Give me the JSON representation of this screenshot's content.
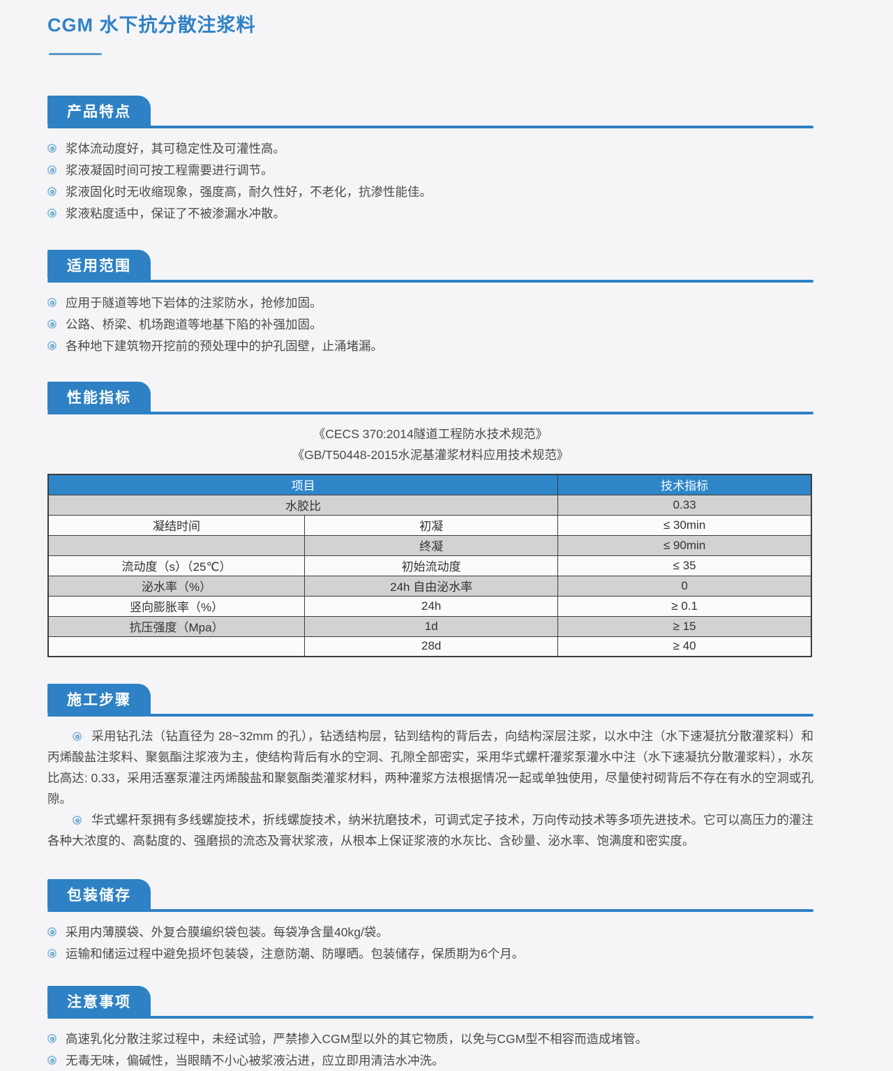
{
  "page": {
    "title": "CGM 水下抗分散注浆料"
  },
  "colors": {
    "accent": "#2e81c4",
    "table_header": "#2e86c9",
    "row_gray": "#d2d2d4",
    "title_blue": "#2f81c6"
  },
  "sections": {
    "features": {
      "heading": "产品特点",
      "bullets": [
        "浆体流动度好，其可稳定性及可灌性高。",
        "浆液凝固时间可按工程需要进行调节。",
        "浆液固化时无收缩现象，强度高，耐久性好，不老化，抗渗性能佳。",
        "浆液粘度适中，保证了不被渗漏水冲散。"
      ]
    },
    "scope": {
      "heading": "适用范围",
      "bullets": [
        "应用于隧道等地下岩体的注浆防水，抢修加固。",
        "公路、桥梁、机场跑道等地基下陷的补强加固。",
        "各种地下建筑物开挖前的预处理中的护孔固壁，止涌堵漏。"
      ]
    },
    "performance": {
      "heading": "性能指标",
      "standards": [
        "《CECS 370:2014隧道工程防水技术规范》",
        "《GB/T50448-2015水泥基灌浆材料应用技术规范》"
      ],
      "table": {
        "headers": [
          "项目",
          "技术指标"
        ],
        "rows": [
          {
            "item": "水胶比",
            "sub": "",
            "value": "0.33"
          },
          {
            "item": "凝结时间",
            "sub": "初凝",
            "value": "≤ 30min"
          },
          {
            "item": "",
            "sub": "终凝",
            "value": "≤ 90min"
          },
          {
            "item": "流动度（s）（25℃）",
            "sub": "初始流动度",
            "value": "≤ 35"
          },
          {
            "item": "泌水率（%）",
            "sub": "24h 自由泌水率",
            "value": "0"
          },
          {
            "item": "竖向膨胀率（%）",
            "sub": "24h",
            "value": "≥ 0.1"
          },
          {
            "item": "抗压强度（Mpa）",
            "sub": "1d",
            "value": "≥ 15"
          },
          {
            "item": "",
            "sub": "28d",
            "value": "≥ 40"
          }
        ]
      }
    },
    "construction": {
      "heading": "施工步骤",
      "paragraphs": [
        "采用钻孔法（钻直径为 28~32mm 的孔），钻透结构层，钻到结构的背后去，向结构深层注浆，以水中注（水下速凝抗分散灌浆料）和丙烯酸盐注浆料、聚氨酯注浆液为主，使结构背后有水的空洞、孔隙全部密实，采用华式螺杆灌浆泵灌水中注（水下速凝抗分散灌浆料），水灰比高达: 0.33，采用活塞泵灌注丙烯酸盐和聚氨酯类灌浆材料，两种灌浆方法根据情况一起或单独使用，尽量使衬砌背后不存在有水的空洞或孔隙。",
        "华式螺杆泵拥有多线螺旋技术，折线螺旋技术，纳米抗磨技术，可调式定子技术，万向传动技术等多项先进技术。它可以高压力的灌注各种大浓度的、高黏度的、强磨损的流态及膏状浆液，从根本上保证浆液的水灰比、含砂量、泌水率、饱满度和密实度。"
      ]
    },
    "packaging": {
      "heading": "包装储存",
      "bullets": [
        "采用内薄膜袋、外复合膜编织袋包装。每袋净含量40kg/袋。",
        "运输和储运过程中避免损坏包装袋，注意防潮、防曝晒。包装储存，保质期为6个月。"
      ]
    },
    "notes": {
      "heading": "注意事项",
      "bullets": [
        "高速乳化分散注浆过程中，未经试验，严禁掺入CGM型以外的其它物质，以免与CGM型不相容而造成堵管。",
        "无毒无味，偏碱性，当眼睛不小心被浆液沾进，应立即用清洁水冲洗。"
      ]
    }
  }
}
